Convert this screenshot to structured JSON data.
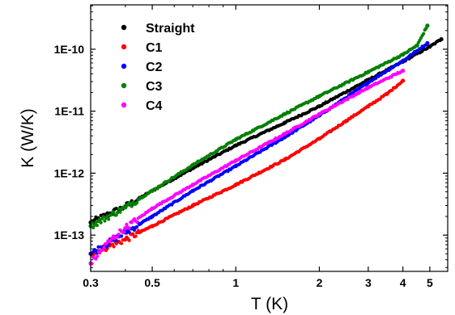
{
  "chart_data": {
    "type": "scatter",
    "xlabel": "T (K)",
    "ylabel": "K (W/K)",
    "x_scale": "log",
    "y_scale": "log",
    "xlim": [
      0.3,
      5.8
    ],
    "ylim": [
      2.6e-14,
      5.2e-10
    ],
    "x_ticks": [
      {
        "value": 0.3,
        "label": "0.3"
      },
      {
        "value": 0.5,
        "label": "0.5"
      },
      {
        "value": 1,
        "label": "1"
      },
      {
        "value": 2,
        "label": "2"
      },
      {
        "value": 3,
        "label": "3"
      },
      {
        "value": 4,
        "label": "4"
      },
      {
        "value": 5,
        "label": "5"
      }
    ],
    "y_ticks": [
      {
        "value": 1e-13,
        "label": "1E-13"
      },
      {
        "value": 1e-12,
        "label": "1E-12"
      },
      {
        "value": 1e-11,
        "label": "1E-11"
      },
      {
        "value": 1e-10,
        "label": "1E-10"
      }
    ],
    "grid": false,
    "legend_position": "top-left",
    "series": [
      {
        "name": "Straight",
        "color": "#000000",
        "points": [
          [
            0.3,
            1.6e-13
          ],
          [
            0.4,
            2.9e-13
          ],
          [
            0.5,
            5.2e-13
          ],
          [
            0.7,
            1.2e-12
          ],
          [
            1.0,
            2.8e-12
          ],
          [
            1.5,
            6.5e-12
          ],
          [
            2.0,
            1.2e-11
          ],
          [
            3.0,
            3.2e-11
          ],
          [
            4.0,
            6.3e-11
          ],
          [
            5.0,
            1.1e-10
          ],
          [
            5.5,
            1.45e-10
          ]
        ]
      },
      {
        "name": "C1",
        "color": "#ff0000",
        "points": [
          [
            0.3,
            5e-14
          ],
          [
            0.4,
            8.5e-14
          ],
          [
            0.5,
            1.4e-13
          ],
          [
            0.7,
            3e-13
          ],
          [
            1.0,
            6.5e-13
          ],
          [
            1.5,
            1.65e-12
          ],
          [
            2.0,
            3.6e-12
          ],
          [
            2.5,
            7e-12
          ],
          [
            3.0,
            1.2e-11
          ],
          [
            3.5,
            1.9e-11
          ],
          [
            4.0,
            3.1e-11
          ]
        ]
      },
      {
        "name": "C2",
        "color": "#0000ff",
        "points": [
          [
            0.3,
            5e-14
          ],
          [
            0.4,
            1.1e-13
          ],
          [
            0.5,
            2e-13
          ],
          [
            0.7,
            5.2e-13
          ],
          [
            1.0,
            1.3e-12
          ],
          [
            1.5,
            3.8e-12
          ],
          [
            2.0,
            8.5e-12
          ],
          [
            3.0,
            2.9e-11
          ],
          [
            4.0,
            6.5e-11
          ],
          [
            4.9,
            1.25e-10
          ]
        ]
      },
      {
        "name": "C3",
        "color": "#008000",
        "points": [
          [
            0.3,
            1.4e-13
          ],
          [
            0.4,
            2.8e-13
          ],
          [
            0.5,
            5.2e-13
          ],
          [
            0.7,
            1.35e-12
          ],
          [
            1.0,
            3.5e-12
          ],
          [
            1.5,
            9e-12
          ],
          [
            2.0,
            1.75e-11
          ],
          [
            3.0,
            4.3e-11
          ],
          [
            4.0,
            8.2e-11
          ],
          [
            4.5,
            1.15e-10
          ],
          [
            4.9,
            2.4e-10
          ]
        ]
      },
      {
        "name": "C4",
        "color": "#ff00ff",
        "points": [
          [
            0.3,
            3.5e-14
          ],
          [
            0.35,
            8e-14
          ],
          [
            0.4,
            1.3e-13
          ],
          [
            0.5,
            2.7e-13
          ],
          [
            0.7,
            6.5e-13
          ],
          [
            1.0,
            1.6e-12
          ],
          [
            1.5,
            4.3e-12
          ],
          [
            2.0,
            9e-12
          ],
          [
            3.0,
            2.4e-11
          ],
          [
            4.0,
            4.5e-11
          ]
        ]
      }
    ]
  }
}
